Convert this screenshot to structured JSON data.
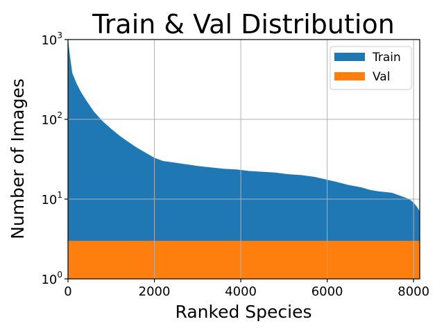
{
  "chart_data": {
    "type": "area",
    "title": "Train & Val Distribution",
    "xlabel": "Ranked Species",
    "ylabel": "Number of Images",
    "xlim": [
      0,
      8142
    ],
    "ylim": [
      1,
      1000
    ],
    "yscale": "log",
    "grid": true,
    "legend_position": "top-right",
    "x_ticks": [
      {
        "value": 0,
        "label": "0"
      },
      {
        "value": 2000,
        "label": "2000"
      },
      {
        "value": 4000,
        "label": "4000"
      },
      {
        "value": 6000,
        "label": "6000"
      },
      {
        "value": 8000,
        "label": "8000"
      }
    ],
    "y_ticks": [
      {
        "value": 1,
        "base": "10",
        "exp": "0"
      },
      {
        "value": 10,
        "base": "10",
        "exp": "1"
      },
      {
        "value": 100,
        "base": "10",
        "exp": "2"
      },
      {
        "value": 1000,
        "base": "10",
        "exp": "3"
      }
    ],
    "series": [
      {
        "name": "Train",
        "color": "#1f77b4",
        "x": [
          0,
          50,
          100,
          200,
          300,
          400,
          500,
          600,
          800,
          1000,
          1200,
          1400,
          1600,
          1800,
          2000,
          2200,
          2400,
          2600,
          2800,
          3000,
          3300,
          3600,
          3900,
          4200,
          4500,
          4800,
          5100,
          5400,
          5700,
          5900,
          6100,
          6300,
          6500,
          6800,
          7000,
          7200,
          7500,
          7800,
          7900,
          8000,
          8080,
          8142
        ],
        "values": [
          1000,
          600,
          380,
          280,
          220,
          180,
          150,
          125,
          95,
          76,
          62,
          52,
          44,
          38,
          33,
          30,
          29,
          28,
          27,
          26,
          25,
          24,
          23.5,
          22.5,
          22,
          21.5,
          20.5,
          20,
          19,
          18,
          17,
          16,
          15,
          14,
          13,
          12.5,
          12,
          10.5,
          10,
          9,
          8,
          7
        ]
      },
      {
        "name": "Val",
        "color": "#ff7f0e",
        "x": [
          0,
          8142
        ],
        "values": [
          3,
          3
        ]
      }
    ]
  }
}
